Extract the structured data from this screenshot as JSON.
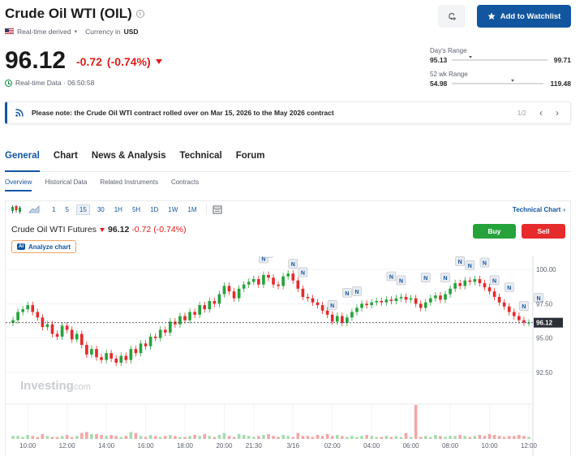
{
  "header": {
    "title": "Crude Oil WTI (OIL)",
    "info_glyph": "i",
    "realtime_label": "Real-time derived",
    "currency_label": "Currency in",
    "currency": "USD",
    "price": "96.12",
    "change": "-0.72",
    "change_pct": "(-0.74%)",
    "realtime_data": "Real-time Data · 06:50:58",
    "watchlist_label": "Add to Watchlist",
    "colors": {
      "accent": "#1256a0",
      "down": "#d91e18",
      "up": "#25a33a"
    }
  },
  "ranges": {
    "day": {
      "label": "Day's Range",
      "low": "95.13",
      "high": "99.71",
      "position": 0.18
    },
    "week52": {
      "label": "52 wk Range",
      "low": "54.98",
      "high": "119.48",
      "position": 0.64
    }
  },
  "notice": {
    "text": "Please note: the Crude Oil WTI contract rolled over on Mar 15, 2026 to the May 2026 contract",
    "pager": "1/2",
    "prev": "‹",
    "next": "›"
  },
  "tabs": [
    {
      "label": "General",
      "active": true
    },
    {
      "label": "Chart",
      "active": false
    },
    {
      "label": "News & Analysis",
      "active": false
    },
    {
      "label": "Technical",
      "active": false
    },
    {
      "label": "Forum",
      "active": false
    }
  ],
  "subtabs": [
    {
      "label": "Overview",
      "active": true
    },
    {
      "label": "Historical Data",
      "active": false
    },
    {
      "label": "Related Instruments",
      "active": false
    },
    {
      "label": "Contracts",
      "active": false
    }
  ],
  "toolbar": {
    "timeframes": [
      "1",
      "5",
      "15",
      "30",
      "1H",
      "5H",
      "1D",
      "1W",
      "1M"
    ],
    "active_timeframe": "15",
    "technical_chart": "Technical Chart",
    "technical_arrow": "›"
  },
  "instrument": {
    "name": "Crude Oil WTI Futures",
    "price": "96.12",
    "change": "-0.72",
    "change_pct": "(-0.74%)",
    "analyze_tag": "AI",
    "analyze_label": "Analyze chart",
    "buy_label": "Buy",
    "sell_label": "Sell"
  },
  "chart_data": {
    "type": "candlestick",
    "watermark": "Investing",
    "watermark_suffix": ".com",
    "y_ticks": [
      "100.00",
      "97.50",
      "95.00",
      "92.50"
    ],
    "y_tick_values": [
      100,
      97.5,
      95,
      92.5
    ],
    "ylim": [
      90.3,
      100.6
    ],
    "last_price": 96.12,
    "last_price_label": "96.12",
    "x_labels": [
      "10:00",
      "12:00",
      "14:00",
      "16:00",
      "18:00",
      "20:00",
      "21:30",
      "3/16",
      "02:00",
      "04:00",
      "06:00",
      "08:00",
      "10:00",
      "12:00"
    ],
    "x_label_index": [
      3,
      11,
      19,
      27,
      35,
      43,
      49,
      57,
      65,
      73,
      81,
      89,
      97,
      105
    ],
    "news_marker": "N",
    "news_index": [
      51,
      52,
      57,
      59,
      65,
      68,
      70,
      77,
      79,
      84,
      88,
      91,
      93,
      96,
      98,
      101,
      104,
      107
    ],
    "closes": [
      96.3,
      96.9,
      97.1,
      97.4,
      96.9,
      96.5,
      95.8,
      96.0,
      95.3,
      95.1,
      95.9,
      95.6,
      94.9,
      95.3,
      94.5,
      93.8,
      94.2,
      93.6,
      93.4,
      93.9,
      93.5,
      93.2,
      93.7,
      93.4,
      94.2,
      93.9,
      94.6,
      94.4,
      95.1,
      95.0,
      95.6,
      95.4,
      96.2,
      96.0,
      96.6,
      96.3,
      96.9,
      96.7,
      97.4,
      97.1,
      97.7,
      97.5,
      98.2,
      98.8,
      98.4,
      97.9,
      98.6,
      98.9,
      99.1,
      99.3,
      98.9,
      99.6,
      99.4,
      98.9,
      98.8,
      99.5,
      99.7,
      99.2,
      98.6,
      98.0,
      97.9,
      97.6,
      97.4,
      97.0,
      96.7,
      96.2,
      96.6,
      96.1,
      96.5,
      96.9,
      97.2,
      97.5,
      97.4,
      97.6,
      97.7,
      97.6,
      97.8,
      97.7,
      97.9,
      98.0,
      97.8,
      97.9,
      97.5,
      97.2,
      97.6,
      97.9,
      98.1,
      97.8,
      98.2,
      98.6,
      99.0,
      98.8,
      99.2,
      99.1,
      99.3,
      99.0,
      98.7,
      98.4,
      98.0,
      97.6,
      97.3,
      96.9,
      96.6,
      96.3,
      96.12,
      96.12
    ],
    "volume": [
      3,
      3,
      2,
      4,
      3,
      2,
      5,
      3,
      2,
      2,
      3,
      4,
      2,
      3,
      6,
      7,
      5,
      5,
      4,
      3,
      4,
      3,
      2,
      3,
      7,
      6,
      3,
      2,
      4,
      3,
      2,
      3,
      4,
      3,
      2,
      2,
      3,
      4,
      3,
      5,
      3,
      2,
      4,
      6,
      3,
      2,
      5,
      4,
      3,
      2,
      3,
      4,
      5,
      3,
      2,
      4,
      3,
      2,
      6,
      3,
      3,
      2,
      4,
      3,
      5,
      3,
      4,
      3,
      2,
      3,
      2,
      3,
      4,
      3,
      2,
      2,
      3,
      2,
      3,
      2,
      6,
      2,
      34,
      2,
      3,
      2,
      4,
      3,
      2,
      3,
      3,
      4,
      3,
      2,
      3,
      4,
      3,
      5,
      4,
      3,
      2,
      3,
      3,
      4,
      3,
      2
    ]
  }
}
